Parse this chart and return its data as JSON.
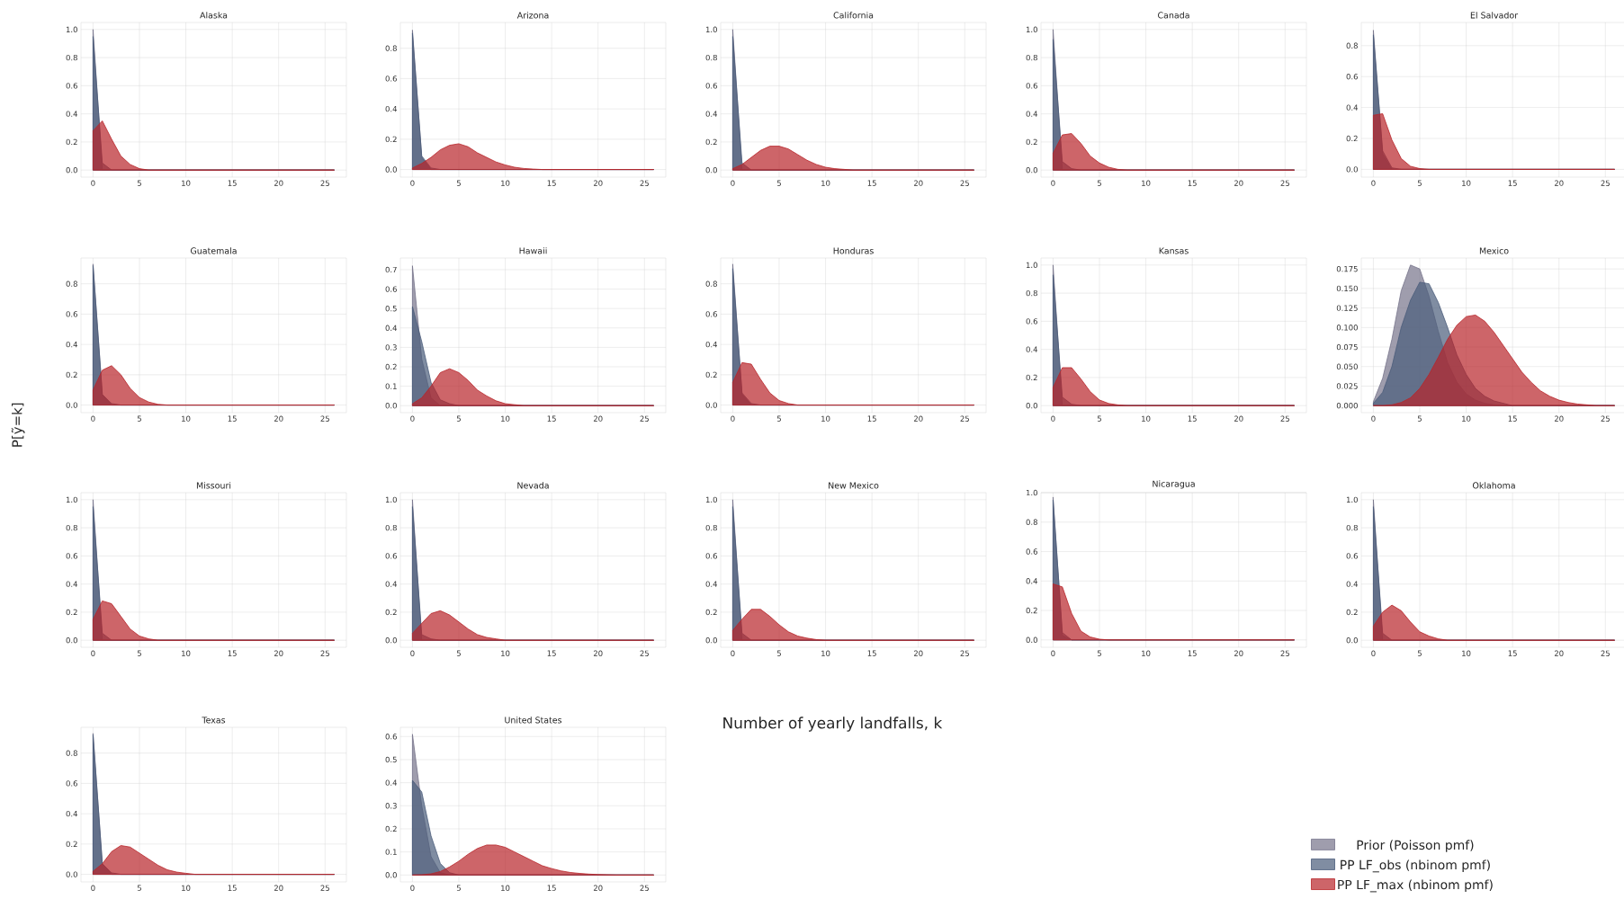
{
  "chart_data": [
    {
      "type": "area",
      "title": "Alaska",
      "ylim": [
        -0.05,
        1.05
      ],
      "yticks": [
        {
          "value": 0,
          "label": "0.0"
        },
        0.2,
        0.4,
        0.6,
        0.8,
        {
          "value": 1,
          "label": "1.0"
        }
      ],
      "xlim": [
        -1.3,
        27.3
      ],
      "xticks": [
        0,
        5,
        10,
        15,
        20,
        25
      ],
      "grid": true,
      "series": [
        {
          "color": "#76738a",
          "x": [
            0,
            1,
            26
          ],
          "values": [
            1.0,
            0.0,
            0.0
          ]
        },
        {
          "color": "#4a5c7a",
          "x": [
            0,
            1,
            2,
            26
          ],
          "values": [
            0.95,
            0.05,
            0.0,
            0.0
          ]
        },
        {
          "color": "#b8242a",
          "x": [
            0,
            1,
            2,
            3,
            4,
            5,
            6,
            26
          ],
          "values": [
            0.28,
            0.35,
            0.22,
            0.1,
            0.04,
            0.01,
            0.0,
            0.0
          ]
        }
      ]
    },
    {
      "type": "area",
      "title": "Arizona",
      "ylim": [
        -0.05,
        0.97
      ],
      "yticks": [
        {
          "value": 0,
          "label": "0.0"
        },
        0.2,
        0.4,
        0.6,
        0.8
      ],
      "xlim": [
        -1.3,
        27.3
      ],
      "xticks": [
        0,
        5,
        10,
        15,
        20,
        25
      ],
      "grid": true,
      "series": [
        {
          "color": "#76738a",
          "x": [
            0,
            1,
            2,
            26
          ],
          "values": [
            0.92,
            0.08,
            0.0,
            0.0
          ]
        },
        {
          "color": "#4a5c7a",
          "x": [
            0,
            1,
            2,
            3,
            26
          ],
          "values": [
            0.9,
            0.09,
            0.01,
            0.0,
            0.0
          ]
        },
        {
          "color": "#b8242a",
          "x": [
            0,
            1,
            2,
            3,
            4,
            5,
            6,
            7,
            8,
            9,
            10,
            11,
            12,
            13,
            14,
            26
          ],
          "values": [
            0.01,
            0.04,
            0.08,
            0.13,
            0.16,
            0.17,
            0.15,
            0.11,
            0.08,
            0.05,
            0.03,
            0.015,
            0.007,
            0.003,
            0.0,
            0.0
          ]
        }
      ]
    },
    {
      "type": "area",
      "title": "California",
      "ylim": [
        -0.05,
        1.05
      ],
      "yticks": [
        {
          "value": 0,
          "label": "0.0"
        },
        0.2,
        0.4,
        0.6,
        0.8,
        {
          "value": 1,
          "label": "1.0"
        }
      ],
      "xlim": [
        -1.3,
        27.3
      ],
      "xticks": [
        0,
        5,
        10,
        15,
        20,
        25
      ],
      "grid": true,
      "series": [
        {
          "color": "#76738a",
          "x": [
            0,
            1,
            26
          ],
          "values": [
            1.0,
            0.0,
            0.0
          ]
        },
        {
          "color": "#4a5c7a",
          "x": [
            0,
            1,
            2,
            26
          ],
          "values": [
            0.95,
            0.05,
            0.0,
            0.0
          ]
        },
        {
          "color": "#b8242a",
          "x": [
            0,
            1,
            2,
            3,
            4,
            5,
            6,
            7,
            8,
            9,
            10,
            11,
            12,
            13,
            26
          ],
          "values": [
            0.01,
            0.04,
            0.09,
            0.14,
            0.17,
            0.17,
            0.15,
            0.11,
            0.07,
            0.04,
            0.02,
            0.01,
            0.005,
            0.0,
            0.0
          ]
        }
      ]
    },
    {
      "type": "area",
      "title": "Canada",
      "ylim": [
        -0.05,
        1.05
      ],
      "yticks": [
        {
          "value": 0,
          "label": "0.0"
        },
        0.2,
        0.4,
        0.6,
        0.8,
        {
          "value": 1,
          "label": "1.0"
        }
      ],
      "xlim": [
        -1.3,
        27.3
      ],
      "xticks": [
        0,
        5,
        10,
        15,
        20,
        25
      ],
      "grid": true,
      "series": [
        {
          "color": "#76738a",
          "x": [
            0,
            1,
            26
          ],
          "values": [
            1.0,
            0.0,
            0.0
          ]
        },
        {
          "color": "#4a5c7a",
          "x": [
            0,
            1,
            2,
            3,
            26
          ],
          "values": [
            0.93,
            0.06,
            0.01,
            0.0,
            0.0
          ]
        },
        {
          "color": "#b8242a",
          "x": [
            0,
            1,
            2,
            3,
            4,
            5,
            6,
            7,
            8,
            26
          ],
          "values": [
            0.12,
            0.25,
            0.26,
            0.19,
            0.1,
            0.05,
            0.02,
            0.005,
            0.0,
            0.0
          ]
        }
      ]
    },
    {
      "type": "area",
      "title": "El Salvador",
      "ylim": [
        -0.05,
        0.95
      ],
      "yticks": [
        {
          "value": 0,
          "label": "0.0"
        },
        0.2,
        0.4,
        0.6,
        0.8
      ],
      "xlim": [
        -1.3,
        27.3
      ],
      "xticks": [
        0,
        5,
        10,
        15,
        20,
        25
      ],
      "grid": true,
      "series": [
        {
          "color": "#76738a",
          "x": [
            0,
            1,
            2,
            26
          ],
          "values": [
            0.9,
            0.1,
            0.0,
            0.0
          ]
        },
        {
          "color": "#4a5c7a",
          "x": [
            0,
            1,
            2,
            3,
            26
          ],
          "values": [
            0.87,
            0.12,
            0.01,
            0.0,
            0.0
          ]
        },
        {
          "color": "#b8242a",
          "x": [
            0,
            1,
            2,
            3,
            4,
            5,
            6,
            26
          ],
          "values": [
            0.35,
            0.36,
            0.19,
            0.07,
            0.02,
            0.005,
            0.0,
            0.0
          ]
        }
      ]
    },
    {
      "type": "area",
      "title": "Guatemala",
      "ylabel": "P[ỹ=k]",
      "ylim": [
        -0.05,
        0.97
      ],
      "yticks": [
        {
          "value": 0,
          "label": "0.0"
        },
        0.2,
        0.4,
        0.6,
        0.8
      ],
      "xlim": [
        -1.3,
        27.3
      ],
      "xticks": [
        0,
        5,
        10,
        15,
        20,
        25
      ],
      "grid": true,
      "series": [
        {
          "color": "#76738a",
          "x": [
            0,
            1,
            2,
            26
          ],
          "values": [
            0.93,
            0.07,
            0.0,
            0.0
          ]
        },
        {
          "color": "#4a5c7a",
          "x": [
            0,
            1,
            2,
            3,
            26
          ],
          "values": [
            0.92,
            0.07,
            0.01,
            0.0,
            0.0
          ]
        },
        {
          "color": "#b8242a",
          "x": [
            0,
            1,
            2,
            3,
            4,
            5,
            6,
            7,
            8,
            26
          ],
          "values": [
            0.1,
            0.23,
            0.26,
            0.2,
            0.11,
            0.05,
            0.02,
            0.005,
            0.0,
            0.0
          ]
        }
      ]
    },
    {
      "type": "area",
      "title": "Hawaii",
      "ylim": [
        -0.036,
        0.76
      ],
      "yticks": [
        {
          "value": 0,
          "label": "0.0"
        },
        0.1,
        0.2,
        0.3,
        0.4,
        0.5,
        0.6,
        0.7
      ],
      "xlim": [
        -1.3,
        27.3
      ],
      "xticks": [
        0,
        5,
        10,
        15,
        20,
        25
      ],
      "grid": true,
      "series": [
        {
          "color": "#76738a",
          "x": [
            0,
            1,
            2,
            3,
            26
          ],
          "values": [
            0.72,
            0.24,
            0.04,
            0.0,
            0.0
          ]
        },
        {
          "color": "#4a5c7a",
          "x": [
            0,
            1,
            2,
            3,
            4,
            5,
            26
          ],
          "values": [
            0.51,
            0.33,
            0.12,
            0.03,
            0.01,
            0.0,
            0.0
          ]
        },
        {
          "color": "#b8242a",
          "x": [
            0,
            1,
            2,
            3,
            4,
            5,
            6,
            7,
            8,
            9,
            10,
            11,
            12,
            26
          ],
          "values": [
            0.01,
            0.04,
            0.1,
            0.17,
            0.19,
            0.17,
            0.13,
            0.08,
            0.05,
            0.025,
            0.01,
            0.005,
            0.0,
            0.0
          ]
        }
      ]
    },
    {
      "type": "area",
      "title": "Honduras",
      "ylim": [
        -0.05,
        0.97
      ],
      "yticks": [
        {
          "value": 0,
          "label": "0.0"
        },
        0.2,
        0.4,
        0.6,
        0.8
      ],
      "xlim": [
        -1.3,
        27.3
      ],
      "xticks": [
        0,
        5,
        10,
        15,
        20,
        25
      ],
      "grid": true,
      "series": [
        {
          "color": "#76738a",
          "x": [
            0,
            1,
            2,
            26
          ],
          "values": [
            0.93,
            0.07,
            0.0,
            0.0
          ]
        },
        {
          "color": "#4a5c7a",
          "x": [
            0,
            1,
            2,
            3,
            26
          ],
          "values": [
            0.9,
            0.08,
            0.01,
            0.0,
            0.0
          ]
        },
        {
          "color": "#b8242a",
          "x": [
            0,
            1,
            2,
            3,
            4,
            5,
            6,
            7,
            26
          ],
          "values": [
            0.15,
            0.28,
            0.27,
            0.17,
            0.08,
            0.03,
            0.01,
            0.0,
            0.0
          ]
        }
      ]
    },
    {
      "type": "area",
      "title": "Kansas",
      "ylim": [
        -0.05,
        1.05
      ],
      "yticks": [
        {
          "value": 0,
          "label": "0.0"
        },
        0.2,
        0.4,
        0.6,
        0.8,
        {
          "value": 1,
          "label": "1.0"
        }
      ],
      "xlim": [
        -1.3,
        27.3
      ],
      "xticks": [
        0,
        5,
        10,
        15,
        20,
        25
      ],
      "grid": true,
      "series": [
        {
          "color": "#76738a",
          "x": [
            0,
            1,
            26
          ],
          "values": [
            1.0,
            0.0,
            0.0
          ]
        },
        {
          "color": "#4a5c7a",
          "x": [
            0,
            1,
            2,
            3,
            26
          ],
          "values": [
            0.93,
            0.06,
            0.01,
            0.0,
            0.0
          ]
        },
        {
          "color": "#b8242a",
          "x": [
            0,
            1,
            2,
            3,
            4,
            5,
            6,
            7,
            8,
            26
          ],
          "values": [
            0.13,
            0.27,
            0.27,
            0.19,
            0.1,
            0.04,
            0.015,
            0.005,
            0.0,
            0.0
          ]
        }
      ]
    },
    {
      "type": "area",
      "title": "Mexico",
      "ylim": [
        -0.009,
        0.189
      ],
      "yticks": [
        {
          "value": 0,
          "label": "0.000"
        },
        0.025,
        {
          "value": 0.05,
          "label": "0.050"
        },
        0.075,
        {
          "value": 0.1,
          "label": "0.100"
        },
        0.125,
        {
          "value": 0.15,
          "label": "0.150"
        },
        0.175
      ],
      "xlim": [
        -1.3,
        27.3
      ],
      "xticks": [
        0,
        5,
        10,
        15,
        20,
        25
      ],
      "grid": true,
      "series": [
        {
          "color": "#76738a",
          "x": [
            0,
            1,
            2,
            3,
            4,
            5,
            6,
            7,
            8,
            9,
            10,
            11,
            12,
            13,
            14,
            26
          ],
          "values": [
            0.005,
            0.035,
            0.085,
            0.147,
            0.18,
            0.175,
            0.14,
            0.095,
            0.055,
            0.03,
            0.015,
            0.007,
            0.003,
            0.001,
            0.0,
            0.0
          ]
        },
        {
          "color": "#4a5c7a",
          "x": [
            0,
            1,
            2,
            3,
            4,
            5,
            6,
            7,
            8,
            9,
            10,
            11,
            12,
            13,
            14,
            15,
            26
          ],
          "values": [
            0.003,
            0.017,
            0.05,
            0.1,
            0.135,
            0.158,
            0.156,
            0.132,
            0.1,
            0.065,
            0.04,
            0.022,
            0.012,
            0.006,
            0.003,
            0.0,
            0.0
          ]
        },
        {
          "color": "#b8242a",
          "x": [
            0,
            1,
            2,
            3,
            4,
            5,
            6,
            7,
            8,
            9,
            10,
            11,
            12,
            13,
            14,
            15,
            16,
            17,
            18,
            19,
            20,
            21,
            22,
            23,
            24,
            25,
            26
          ],
          "values": [
            0.0,
            0.0,
            0.001,
            0.004,
            0.01,
            0.022,
            0.04,
            0.062,
            0.085,
            0.103,
            0.114,
            0.116,
            0.108,
            0.094,
            0.077,
            0.06,
            0.043,
            0.03,
            0.019,
            0.012,
            0.007,
            0.004,
            0.002,
            0.001,
            0.0,
            0.0,
            0.0
          ]
        }
      ]
    },
    {
      "type": "area",
      "title": "Missouri",
      "ylim": [
        -0.05,
        1.05
      ],
      "yticks": [
        {
          "value": 0,
          "label": "0.0"
        },
        0.2,
        0.4,
        0.6,
        0.8,
        {
          "value": 1,
          "label": "1.0"
        }
      ],
      "xlim": [
        -1.3,
        27.3
      ],
      "xticks": [
        0,
        5,
        10,
        15,
        20,
        25
      ],
      "grid": true,
      "series": [
        {
          "color": "#76738a",
          "x": [
            0,
            1,
            26
          ],
          "values": [
            1.0,
            0.0,
            0.0
          ]
        },
        {
          "color": "#4a5c7a",
          "x": [
            0,
            1,
            2,
            26
          ],
          "values": [
            0.95,
            0.05,
            0.0,
            0.0
          ]
        },
        {
          "color": "#b8242a",
          "x": [
            0,
            1,
            2,
            3,
            4,
            5,
            6,
            7,
            26
          ],
          "values": [
            0.15,
            0.28,
            0.26,
            0.17,
            0.08,
            0.03,
            0.01,
            0.0,
            0.0
          ]
        }
      ]
    },
    {
      "type": "area",
      "title": "Nevada",
      "ylim": [
        -0.05,
        1.05
      ],
      "yticks": [
        {
          "value": 0,
          "label": "0.0"
        },
        0.2,
        0.4,
        0.6,
        0.8,
        {
          "value": 1,
          "label": "1.0"
        }
      ],
      "xlim": [
        -1.3,
        27.3
      ],
      "xticks": [
        0,
        5,
        10,
        15,
        20,
        25
      ],
      "grid": true,
      "series": [
        {
          "color": "#76738a",
          "x": [
            0,
            1,
            26
          ],
          "values": [
            1.0,
            0.0,
            0.0
          ]
        },
        {
          "color": "#4a5c7a",
          "x": [
            0,
            1,
            2,
            3,
            26
          ],
          "values": [
            0.95,
            0.04,
            0.01,
            0.0,
            0.0
          ]
        },
        {
          "color": "#b8242a",
          "x": [
            0,
            1,
            2,
            3,
            4,
            5,
            6,
            7,
            8,
            9,
            10,
            26
          ],
          "values": [
            0.05,
            0.12,
            0.19,
            0.21,
            0.18,
            0.13,
            0.08,
            0.04,
            0.02,
            0.01,
            0.0,
            0.0
          ]
        }
      ]
    },
    {
      "type": "area",
      "title": "New Mexico",
      "ylim": [
        -0.05,
        1.05
      ],
      "yticks": [
        {
          "value": 0,
          "label": "0.0"
        },
        0.2,
        0.4,
        0.6,
        0.8,
        {
          "value": 1,
          "label": "1.0"
        }
      ],
      "xlim": [
        -1.3,
        27.3
      ],
      "xticks": [
        0,
        5,
        10,
        15,
        20,
        25
      ],
      "grid": true,
      "series": [
        {
          "color": "#76738a",
          "x": [
            0,
            1,
            26
          ],
          "values": [
            1.0,
            0.0,
            0.0
          ]
        },
        {
          "color": "#4a5c7a",
          "x": [
            0,
            1,
            2,
            26
          ],
          "values": [
            0.95,
            0.05,
            0.0,
            0.0
          ]
        },
        {
          "color": "#b8242a",
          "x": [
            0,
            1,
            2,
            3,
            4,
            5,
            6,
            7,
            8,
            9,
            10,
            26
          ],
          "values": [
            0.07,
            0.15,
            0.22,
            0.22,
            0.17,
            0.11,
            0.06,
            0.03,
            0.015,
            0.005,
            0.0,
            0.0
          ]
        }
      ]
    },
    {
      "type": "area",
      "title": "Nicaragua",
      "ylim": [
        -0.05,
        1.0
      ],
      "yticks": [
        {
          "value": 0,
          "label": "0.0"
        },
        0.2,
        0.4,
        0.6,
        0.8,
        {
          "value": 1,
          "label": "1.0"
        }
      ],
      "xlim": [
        -1.3,
        27.3
      ],
      "xticks": [
        0,
        5,
        10,
        15,
        20,
        25
      ],
      "grid": true,
      "series": [
        {
          "color": "#76738a",
          "x": [
            0,
            1,
            2,
            26
          ],
          "values": [
            0.97,
            0.03,
            0.0,
            0.0
          ]
        },
        {
          "color": "#4a5c7a",
          "x": [
            0,
            1,
            2,
            26
          ],
          "values": [
            0.95,
            0.05,
            0.0,
            0.0
          ]
        },
        {
          "color": "#b8242a",
          "x": [
            0,
            1,
            2,
            3,
            4,
            5,
            6,
            26
          ],
          "values": [
            0.38,
            0.36,
            0.18,
            0.06,
            0.02,
            0.005,
            0.0,
            0.0
          ]
        }
      ]
    },
    {
      "type": "area",
      "title": "Oklahoma",
      "ylim": [
        -0.05,
        1.05
      ],
      "yticks": [
        {
          "value": 0,
          "label": "0.0"
        },
        0.2,
        0.4,
        0.6,
        0.8,
        {
          "value": 1,
          "label": "1.0"
        }
      ],
      "xlim": [
        -1.3,
        27.3
      ],
      "xticks": [
        0,
        5,
        10,
        15,
        20,
        25
      ],
      "grid": true,
      "series": [
        {
          "color": "#76738a",
          "x": [
            0,
            1,
            26
          ],
          "values": [
            1.0,
            0.0,
            0.0
          ]
        },
        {
          "color": "#4a5c7a",
          "x": [
            0,
            1,
            2,
            26
          ],
          "values": [
            0.95,
            0.05,
            0.0,
            0.0
          ]
        },
        {
          "color": "#b8242a",
          "x": [
            0,
            1,
            2,
            3,
            4,
            5,
            6,
            7,
            8,
            26
          ],
          "values": [
            0.1,
            0.2,
            0.25,
            0.21,
            0.13,
            0.06,
            0.03,
            0.01,
            0.0,
            0.0
          ]
        }
      ]
    },
    {
      "type": "area",
      "title": "Texas",
      "ylim": [
        -0.05,
        0.97
      ],
      "yticks": [
        {
          "value": 0,
          "label": "0.0"
        },
        0.2,
        0.4,
        0.6,
        0.8
      ],
      "xlim": [
        -1.3,
        27.3
      ],
      "xticks": [
        0,
        5,
        10,
        15,
        20,
        25
      ],
      "grid": true,
      "series": [
        {
          "color": "#76738a",
          "x": [
            0,
            1,
            2,
            26
          ],
          "values": [
            0.93,
            0.07,
            0.0,
            0.0
          ]
        },
        {
          "color": "#4a5c7a",
          "x": [
            0,
            1,
            2,
            3,
            26
          ],
          "values": [
            0.92,
            0.07,
            0.01,
            0.0,
            0.0
          ]
        },
        {
          "color": "#b8242a",
          "x": [
            0,
            1,
            2,
            3,
            4,
            5,
            6,
            7,
            8,
            9,
            10,
            11,
            26
          ],
          "values": [
            0.02,
            0.07,
            0.15,
            0.19,
            0.18,
            0.14,
            0.1,
            0.06,
            0.03,
            0.015,
            0.007,
            0.0,
            0.0
          ]
        }
      ]
    },
    {
      "type": "area",
      "title": "United States",
      "xlabel": "Number of yearly landfalls, k",
      "legend": "bottom right",
      "ylim": [
        -0.03,
        0.64
      ],
      "yticks": [
        {
          "value": 0,
          "label": "0.0"
        },
        0.1,
        0.2,
        0.3,
        0.4,
        0.5,
        0.6
      ],
      "xlim": [
        -1.3,
        27.3
      ],
      "xticks": [
        0,
        5,
        10,
        15,
        20,
        25
      ],
      "grid": true,
      "series": [
        {
          "name": "Prior (Poisson pmf)",
          "color": "#76738a",
          "x": [
            0,
            1,
            2,
            3,
            4,
            26
          ],
          "values": [
            0.61,
            0.3,
            0.08,
            0.01,
            0.0,
            0.0
          ]
        },
        {
          "name": "PP LF_obs (nbinom pmf)",
          "color": "#4a5c7a",
          "x": [
            0,
            1,
            2,
            3,
            4,
            5,
            26
          ],
          "values": [
            0.41,
            0.36,
            0.17,
            0.05,
            0.01,
            0.0,
            0.0
          ]
        },
        {
          "name": "PP LF_max (nbinom pmf)",
          "color": "#b8242a",
          "x": [
            0,
            1,
            2,
            3,
            4,
            5,
            6,
            7,
            8,
            9,
            10,
            11,
            12,
            13,
            14,
            15,
            16,
            17,
            18,
            19,
            20,
            21,
            22,
            26
          ],
          "values": [
            0.0,
            0.001,
            0.005,
            0.015,
            0.035,
            0.06,
            0.09,
            0.115,
            0.13,
            0.13,
            0.12,
            0.1,
            0.08,
            0.06,
            0.04,
            0.028,
            0.018,
            0.011,
            0.007,
            0.004,
            0.002,
            0.001,
            0.0,
            0.0
          ]
        }
      ]
    }
  ]
}
